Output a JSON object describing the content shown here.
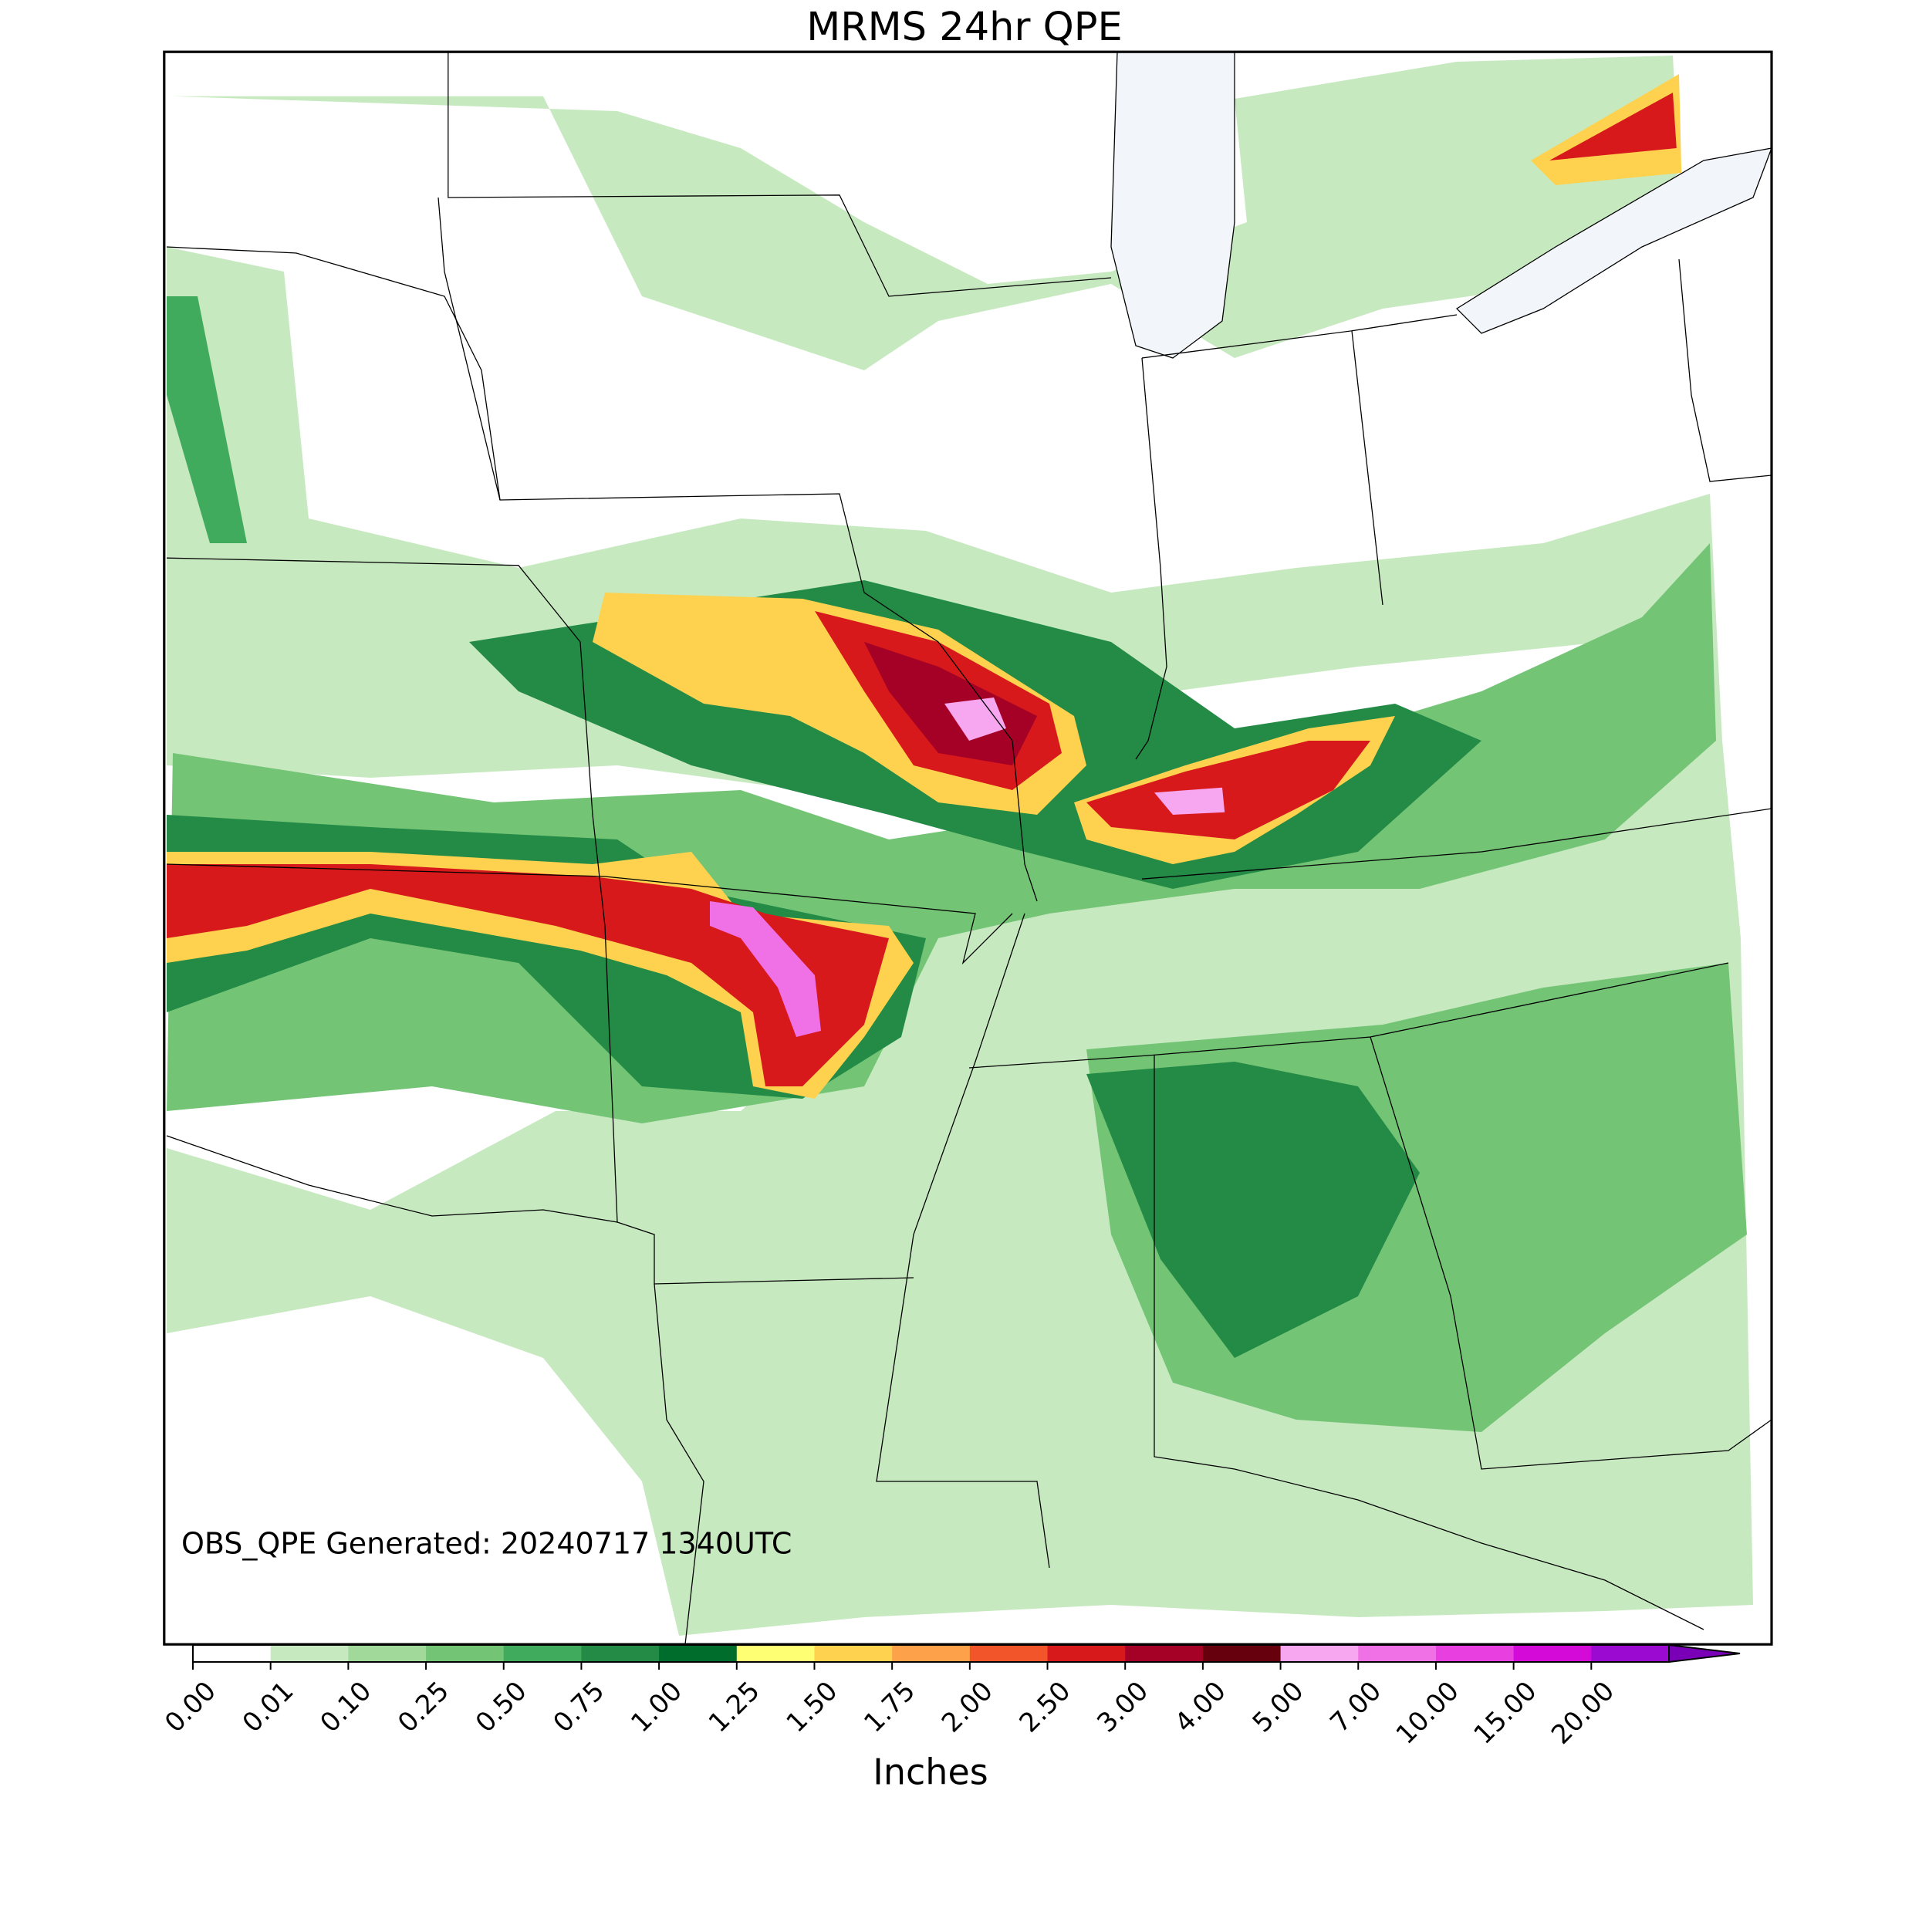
{
  "title": "MRMS 24hr QPE",
  "annotation": "OBS_QPE Generated: 20240717 1340UTC",
  "colorbar": {
    "label": "Inches",
    "ticks": [
      {
        "value": 0,
        "label": "0.00"
      },
      {
        "value": 0.01,
        "label": "0.01"
      },
      {
        "value": 0.1,
        "label": "0.10"
      },
      {
        "value": 0.25,
        "label": "0.25"
      },
      {
        "value": 0.5,
        "label": "0.50"
      },
      {
        "value": 0.75,
        "label": "0.75"
      },
      {
        "value": 1,
        "label": "1.00"
      },
      {
        "value": 1.25,
        "label": "1.25"
      },
      {
        "value": 1.5,
        "label": "1.50"
      },
      {
        "value": 1.75,
        "label": "1.75"
      },
      {
        "value": 2,
        "label": "2.00"
      },
      {
        "value": 2.5,
        "label": "2.50"
      },
      {
        "value": 3,
        "label": "3.00"
      },
      {
        "value": 4,
        "label": "4.00"
      },
      {
        "value": 5,
        "label": "5.00"
      },
      {
        "value": 7,
        "label": "7.00"
      },
      {
        "value": 10,
        "label": "10.00"
      },
      {
        "value": 15,
        "label": "15.00"
      },
      {
        "value": 20,
        "label": "20.00"
      }
    ],
    "colors": [
      "#ffffff",
      "#c7e9c0",
      "#a1d99b",
      "#74c476",
      "#41ab5d",
      "#238b45",
      "#006d2c",
      "#ffff73",
      "#fed24f",
      "#fda24a",
      "#f2552a",
      "#d7191c",
      "#a50026",
      "#67000d",
      "#f7a6f0",
      "#f070e6",
      "#e840e0",
      "#d40ad8",
      "#9a0ad0"
    ],
    "extend_color": "#7a00b8"
  }
}
